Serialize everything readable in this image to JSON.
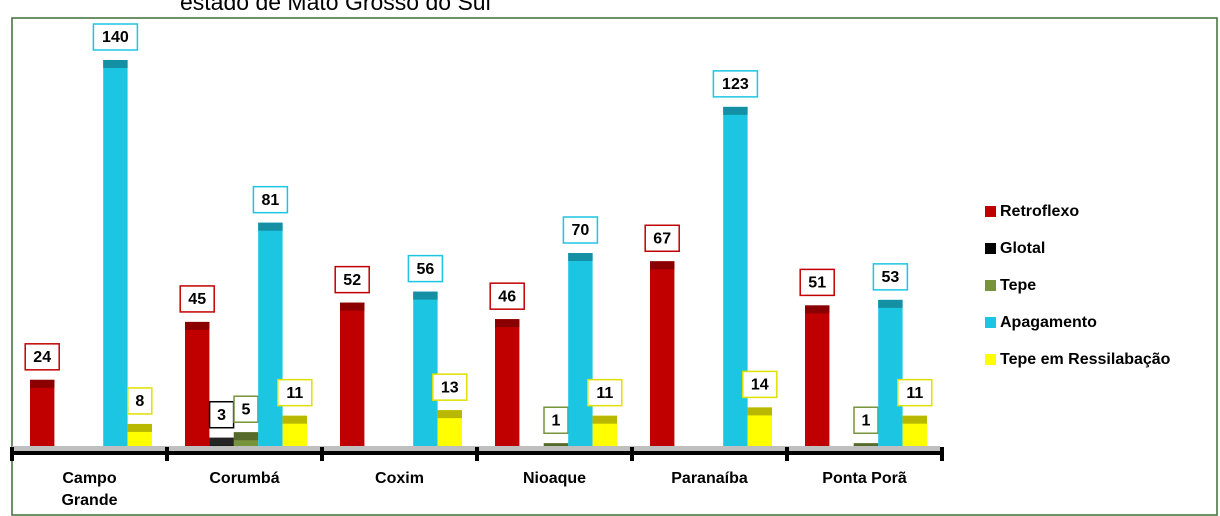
{
  "chart_data": {
    "type": "bar",
    "title": "estado de Mato Grosso do Sul",
    "categories": [
      "Campo Grande",
      "Corumbá",
      "Coxim",
      "Nioaque",
      "Paranaíba",
      "Ponta Porã"
    ],
    "series": [
      {
        "name": "Retroflexo",
        "color": "#c00000",
        "values": [
          24,
          45,
          52,
          46,
          67,
          51
        ]
      },
      {
        "name": "Glotal",
        "color": "#000000",
        "values": [
          null,
          3,
          null,
          null,
          null,
          null
        ]
      },
      {
        "name": "Tepe",
        "color": "#77933c",
        "values": [
          null,
          5,
          null,
          1,
          null,
          1
        ]
      },
      {
        "name": "Apagamento",
        "color": "#1cc6e3",
        "values": [
          140,
          81,
          56,
          70,
          123,
          53
        ]
      },
      {
        "name": "Tepe em Ressilabação",
        "color": "#ffff00",
        "values": [
          8,
          11,
          13,
          11,
          14,
          11
        ]
      }
    ],
    "ylim": [
      0,
      140
    ],
    "legend": "right"
  }
}
